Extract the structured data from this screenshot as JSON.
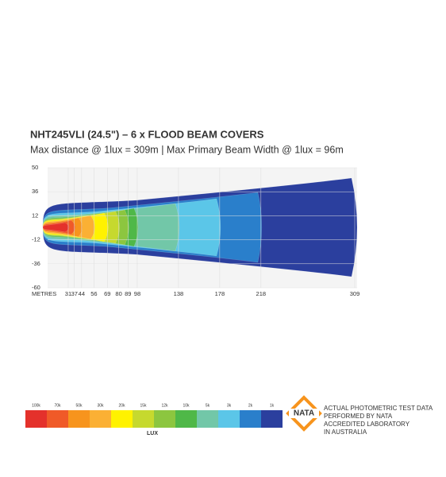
{
  "chart_data": {
    "type": "isolux",
    "title": "NHT245VLI (24.5\") – 6 x FLOOD BEAM COVERS",
    "subtitle": "Max distance @ 1lux = 309m  |  Max Primary  Beam Width @ 1lux = 96m",
    "xlabel": "METRES",
    "xlim": [
      0,
      309
    ],
    "xticks": [
      31,
      37,
      44,
      56,
      69,
      80,
      89,
      98,
      138,
      178,
      218,
      309
    ],
    "yticks": [
      50,
      36,
      12,
      -12,
      -36,
      -60
    ],
    "legend": {
      "title": "LUX",
      "labels": [
        "100k",
        "70k",
        "50k",
        "30k",
        "20k",
        "15k",
        "12k",
        "10k",
        "5k",
        "3k",
        "2k",
        "1k"
      ],
      "colors": [
        "#e4312b",
        "#f05a28",
        "#f7941d",
        "#fbb034",
        "#fff200",
        "#c6d92e",
        "#8cc63f",
        "#4fb848",
        "#72c7a8",
        "#5bc6e8",
        "#2a7fcb",
        "#2b3f9e"
      ]
    },
    "badge": {
      "logo": "NATA",
      "lines": [
        "ACTUAL PHOTOMETRIC TEST DATA",
        "PERFORMED BY NATA",
        "ACCREDITED LABORATORY",
        "IN AUSTRALIA"
      ]
    }
  }
}
